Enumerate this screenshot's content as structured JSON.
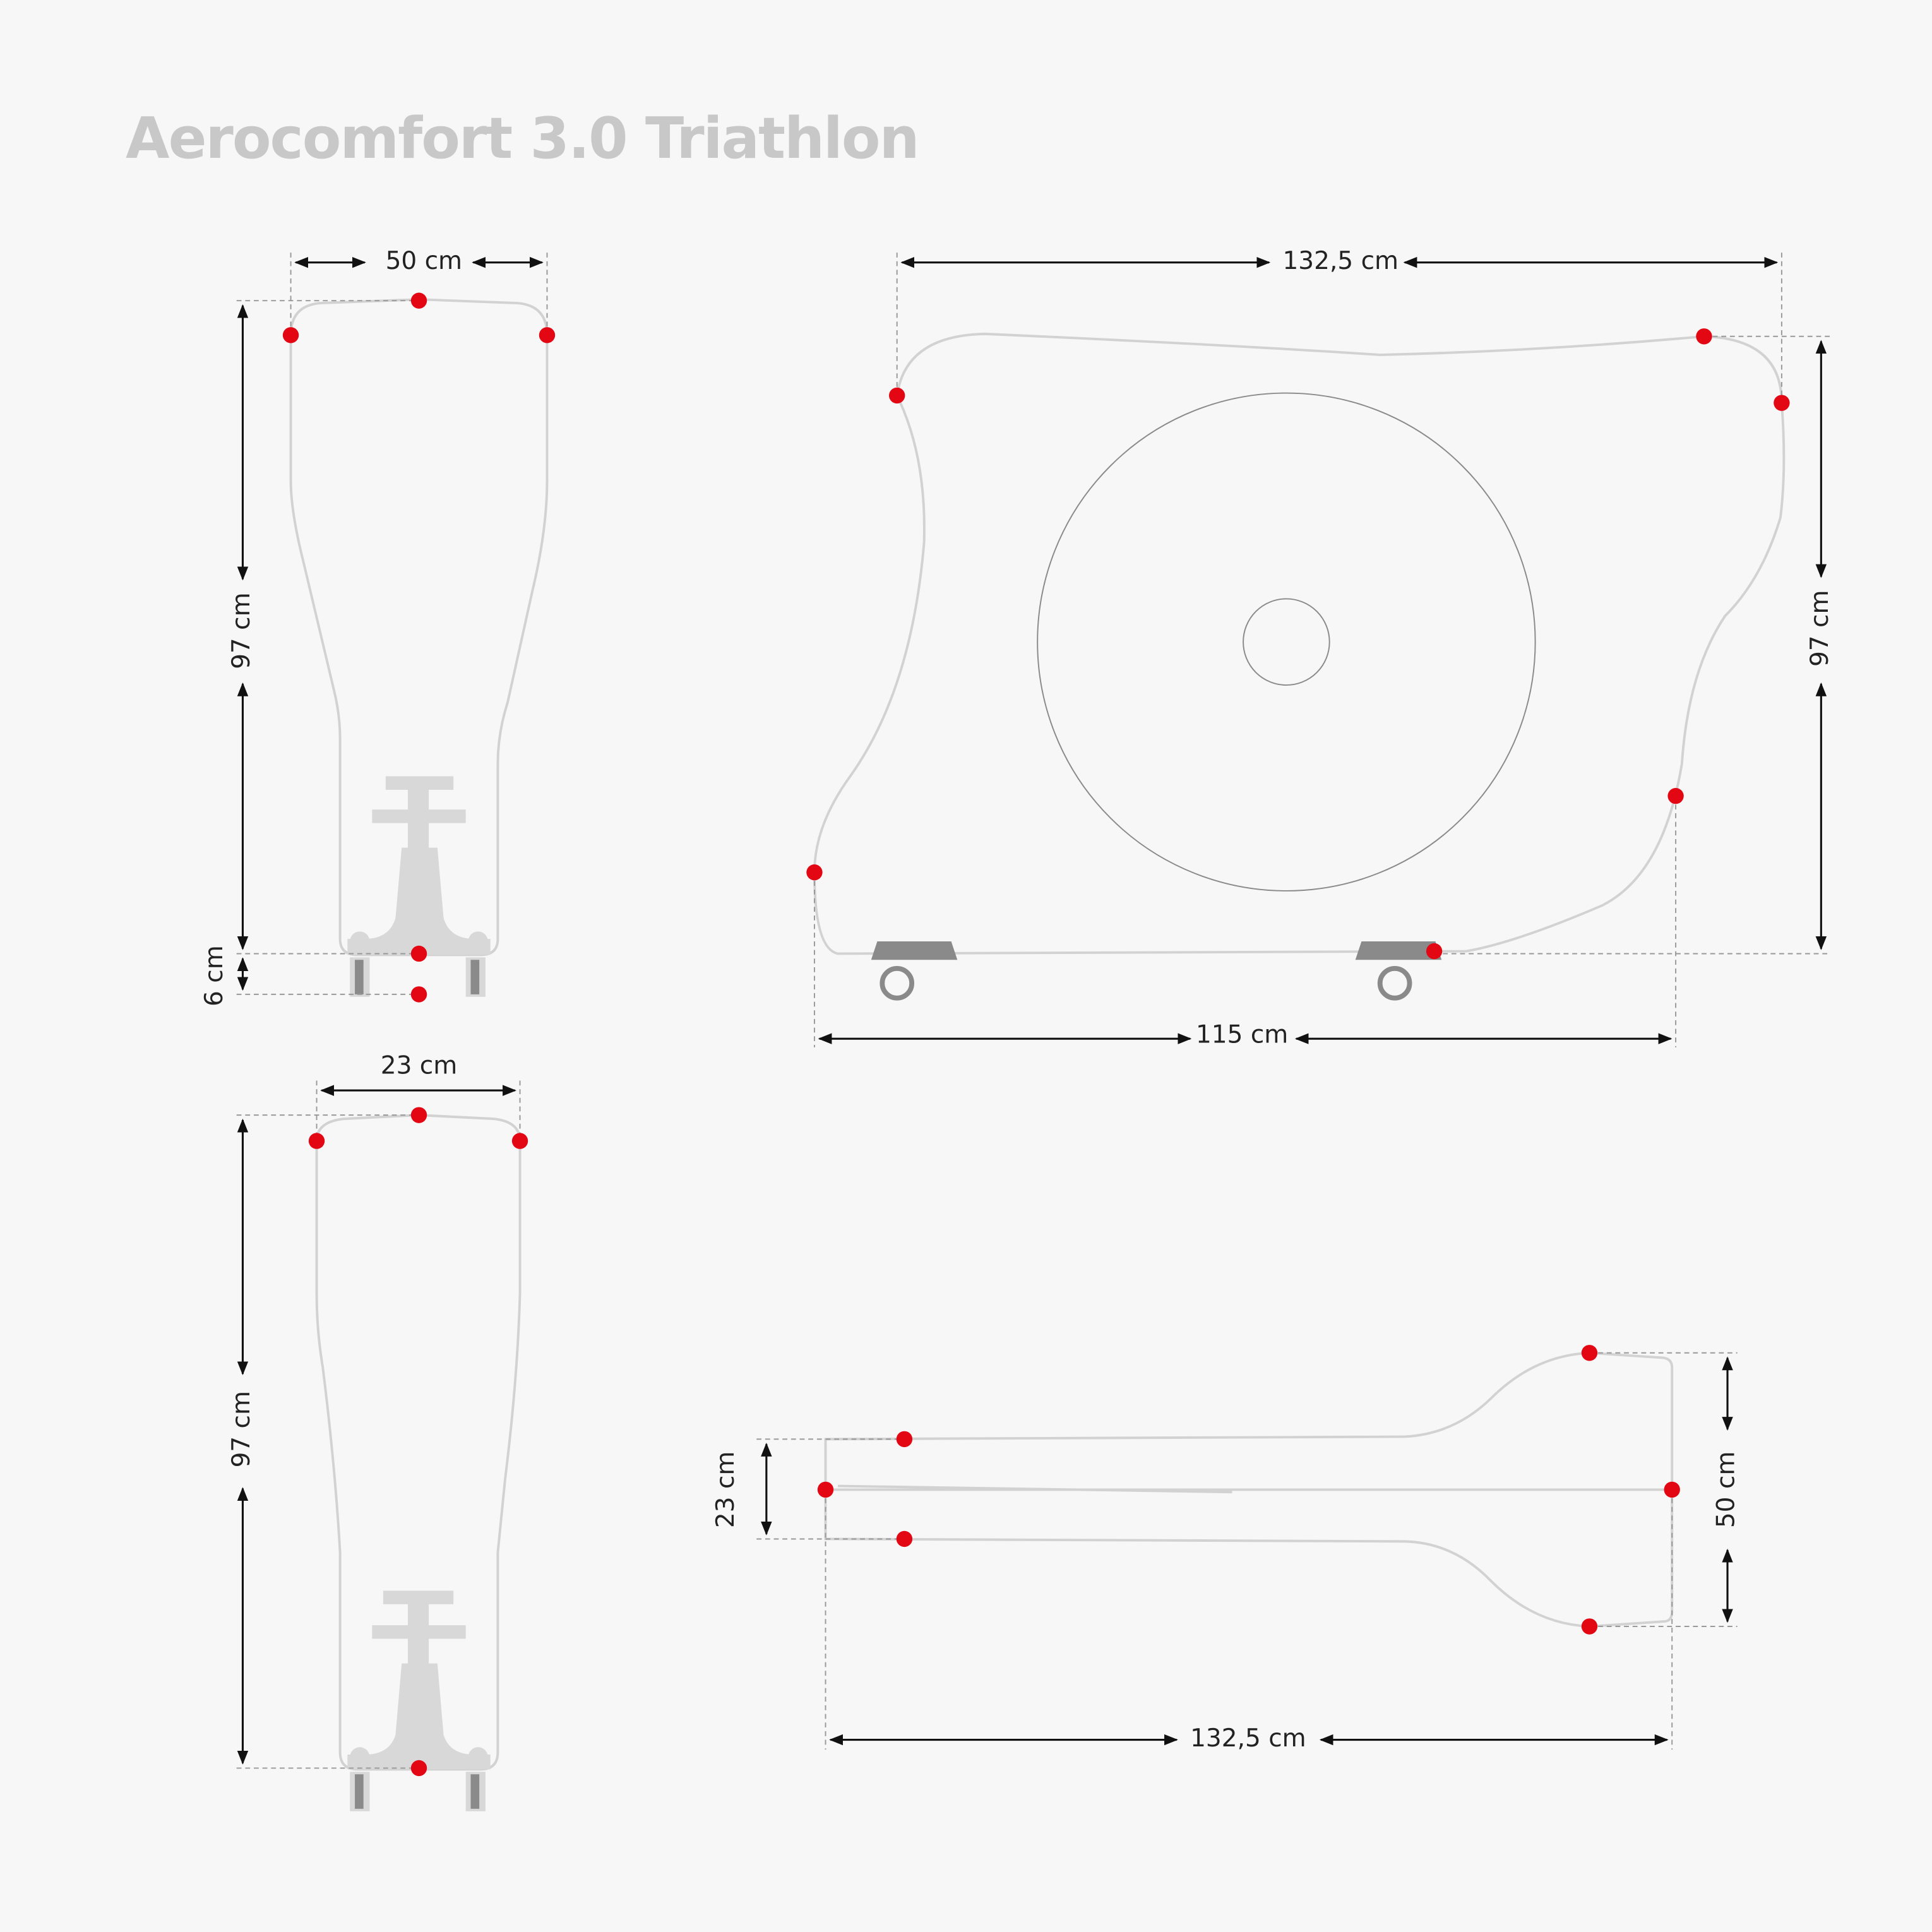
{
  "title": "Aerocomfort 3.0 Triathlon",
  "views": {
    "front_top": {
      "width": "50 cm",
      "height": "97 cm",
      "base": "6 cm"
    },
    "side": {
      "length": "132,5 cm",
      "height": "97 cm",
      "base_length": "115 cm"
    },
    "front_bottom": {
      "width": "23 cm",
      "height": "97 cm"
    },
    "top": {
      "width": "23 cm",
      "depth": "50 cm",
      "length": "132,5 cm"
    }
  }
}
